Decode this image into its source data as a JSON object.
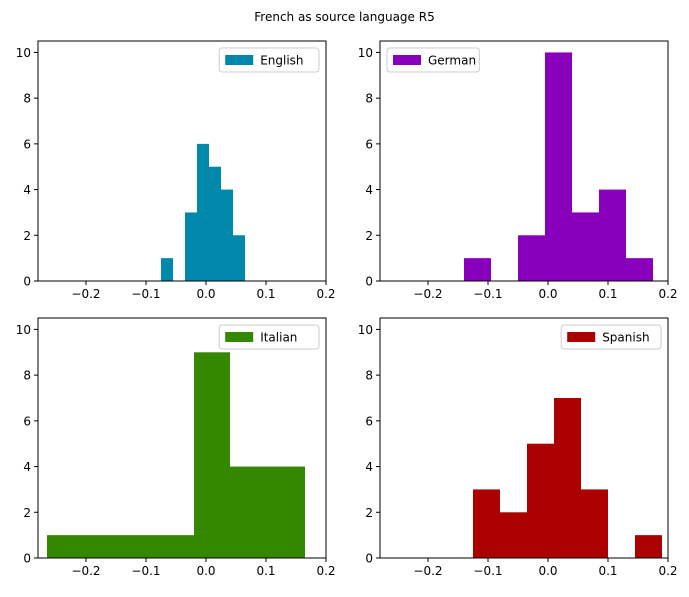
{
  "figure": {
    "title": "French as source language R5"
  },
  "chart_data": [
    {
      "type": "bar",
      "legend": "English",
      "color": "#0088aa",
      "xlim": [
        -0.28,
        0.2
      ],
      "ylim": [
        0,
        10.5
      ],
      "xticks": [
        -0.2,
        -0.1,
        0.0,
        0.1,
        0.2
      ],
      "yticks": [
        0,
        2,
        4,
        6,
        8,
        10
      ],
      "legend_position": "top-right",
      "bins": [
        {
          "x0": -0.075,
          "x1": -0.055,
          "value": 1
        },
        {
          "x0": -0.055,
          "x1": -0.035,
          "value": 0
        },
        {
          "x0": -0.035,
          "x1": -0.015,
          "value": 3
        },
        {
          "x0": -0.015,
          "x1": 0.005,
          "value": 6
        },
        {
          "x0": 0.005,
          "x1": 0.025,
          "value": 5
        },
        {
          "x0": 0.025,
          "x1": 0.045,
          "value": 4
        },
        {
          "x0": 0.045,
          "x1": 0.065,
          "value": 2
        }
      ]
    },
    {
      "type": "bar",
      "legend": "German",
      "color": "#8800bb",
      "xlim": [
        -0.28,
        0.2
      ],
      "ylim": [
        0,
        10.5
      ],
      "xticks": [
        -0.2,
        -0.1,
        0.0,
        0.1,
        0.2
      ],
      "yticks": [
        0,
        2,
        4,
        6,
        8,
        10
      ],
      "legend_position": "top-left",
      "bins": [
        {
          "x0": -0.14,
          "x1": -0.095,
          "value": 1
        },
        {
          "x0": -0.095,
          "x1": -0.05,
          "value": 0
        },
        {
          "x0": -0.05,
          "x1": -0.005,
          "value": 2
        },
        {
          "x0": -0.005,
          "x1": 0.04,
          "value": 10
        },
        {
          "x0": 0.04,
          "x1": 0.085,
          "value": 3
        },
        {
          "x0": 0.085,
          "x1": 0.13,
          "value": 4
        },
        {
          "x0": 0.13,
          "x1": 0.175,
          "value": 1
        }
      ]
    },
    {
      "type": "bar",
      "legend": "Italian",
      "color": "#338800",
      "xlim": [
        -0.28,
        0.2
      ],
      "ylim": [
        0,
        10.5
      ],
      "xticks": [
        -0.2,
        -0.1,
        0.0,
        0.1,
        0.2
      ],
      "yticks": [
        0,
        2,
        4,
        6,
        8,
        10
      ],
      "legend_position": "top-right",
      "bins": [
        {
          "x0": -0.265,
          "x1": -0.02,
          "value": 1
        },
        {
          "x0": -0.02,
          "x1": 0.04,
          "value": 9
        },
        {
          "x0": 0.04,
          "x1": 0.165,
          "value": 4
        }
      ]
    },
    {
      "type": "bar",
      "legend": "Spanish",
      "color": "#aa0000",
      "xlim": [
        -0.28,
        0.2
      ],
      "ylim": [
        0,
        10.5
      ],
      "xticks": [
        -0.2,
        -0.1,
        0.0,
        0.1,
        0.2
      ],
      "yticks": [
        0,
        2,
        4,
        6,
        8,
        10
      ],
      "legend_position": "top-right",
      "bins": [
        {
          "x0": -0.125,
          "x1": -0.08,
          "value": 3
        },
        {
          "x0": -0.08,
          "x1": -0.035,
          "value": 2
        },
        {
          "x0": -0.035,
          "x1": 0.01,
          "value": 5
        },
        {
          "x0": 0.01,
          "x1": 0.055,
          "value": 7
        },
        {
          "x0": 0.055,
          "x1": 0.1,
          "value": 3
        },
        {
          "x0": 0.1,
          "x1": 0.145,
          "value": 0
        },
        {
          "x0": 0.145,
          "x1": 0.19,
          "value": 1
        }
      ]
    }
  ]
}
